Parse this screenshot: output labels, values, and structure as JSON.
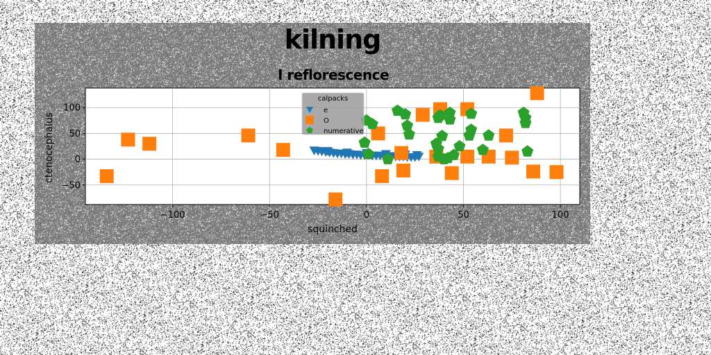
{
  "figure": {
    "suptitle": "kilning",
    "background": "#808080"
  },
  "chart_data": {
    "type": "scatter",
    "title": "I reflorescence",
    "xlabel": "squinched",
    "ylabel": "ctenocephalus",
    "xlim": [
      -145,
      110
    ],
    "ylim": [
      -88,
      138
    ],
    "xticks": [
      -100,
      -50,
      0,
      50,
      100
    ],
    "yticks": [
      -50,
      0,
      50,
      100
    ],
    "xtick_labels": [
      "−100",
      "−50",
      "0",
      "50",
      "100"
    ],
    "ytick_labels": [
      "−50",
      "0",
      "50",
      "100"
    ],
    "grid": true,
    "legend": {
      "title": "calpacks",
      "placement": "top-center"
    },
    "series": [
      {
        "name": "e",
        "marker": "triangle-down",
        "color": "#1f77b4",
        "points": [
          [
            -27,
            17
          ],
          [
            -25,
            16
          ],
          [
            -23,
            15
          ],
          [
            -21,
            14
          ],
          [
            -19,
            13
          ],
          [
            -17,
            12
          ],
          [
            -15,
            11
          ],
          [
            -13,
            11
          ],
          [
            -11,
            10
          ],
          [
            -9,
            10
          ],
          [
            -7,
            9
          ],
          [
            -5,
            9
          ],
          [
            -3,
            8
          ],
          [
            -1,
            8
          ],
          [
            1,
            8
          ],
          [
            3,
            7
          ],
          [
            5,
            7
          ],
          [
            7,
            7
          ],
          [
            9,
            6
          ],
          [
            11,
            6
          ],
          [
            13,
            6
          ],
          [
            15,
            5
          ],
          [
            17,
            5
          ],
          [
            19,
            5
          ],
          [
            21,
            4
          ],
          [
            23,
            4
          ],
          [
            25,
            4
          ],
          [
            27,
            5
          ],
          [
            -20,
            16
          ],
          [
            -10,
            13
          ],
          [
            0,
            12
          ],
          [
            10,
            10
          ],
          [
            20,
            9
          ],
          [
            26,
            8
          ]
        ]
      },
      {
        "name": "O",
        "marker": "square",
        "color": "#ff7f0e",
        "points": [
          [
            -134,
            -33
          ],
          [
            -123,
            38
          ],
          [
            -112,
            30
          ],
          [
            -61,
            46
          ],
          [
            -43,
            18
          ],
          [
            -16,
            -78
          ],
          [
            6,
            50
          ],
          [
            8,
            -33
          ],
          [
            18,
            12
          ],
          [
            19,
            -22
          ],
          [
            29,
            86
          ],
          [
            36,
            5
          ],
          [
            38,
            97
          ],
          [
            44,
            -27
          ],
          [
            52,
            5
          ],
          [
            52,
            97
          ],
          [
            63,
            5
          ],
          [
            72,
            46
          ],
          [
            75,
            3
          ],
          [
            86,
            -24
          ],
          [
            88,
            128
          ],
          [
            98,
            -25
          ]
        ]
      },
      {
        "name": "numerative",
        "marker": "pentagon",
        "color": "#2ca02c",
        "points": [
          [
            0,
            75
          ],
          [
            3,
            68
          ],
          [
            -1,
            32
          ],
          [
            1,
            10
          ],
          [
            11,
            0
          ],
          [
            16,
            94
          ],
          [
            20,
            87
          ],
          [
            21,
            65
          ],
          [
            22,
            48
          ],
          [
            36,
            30
          ],
          [
            37,
            20
          ],
          [
            37,
            5
          ],
          [
            37,
            80
          ],
          [
            38,
            85
          ],
          [
            39,
            45
          ],
          [
            40,
            0
          ],
          [
            42,
            2
          ],
          [
            43,
            90
          ],
          [
            43,
            77
          ],
          [
            45,
            8
          ],
          [
            48,
            25
          ],
          [
            53,
            46
          ],
          [
            54,
            57
          ],
          [
            54,
            88
          ],
          [
            60,
            18
          ],
          [
            63,
            46
          ],
          [
            81,
            90
          ],
          [
            82,
            80
          ],
          [
            82,
            70
          ],
          [
            83,
            15
          ]
        ]
      }
    ]
  }
}
